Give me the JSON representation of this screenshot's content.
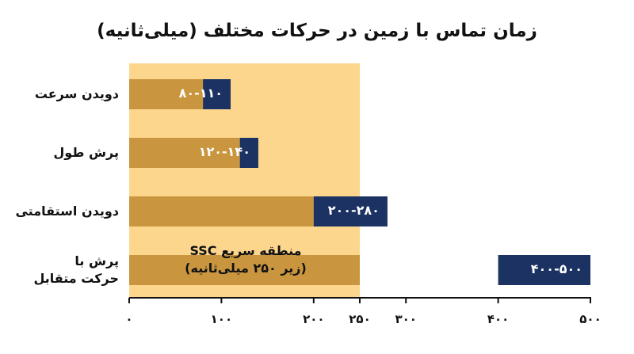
{
  "chart_data": {
    "type": "bar",
    "orientation": "horizontal",
    "title": "زمان تماس با زمین در حرکات مختلف (میلی‌ثانیه)",
    "xlabel": "",
    "ylabel": "",
    "xlim": [
      0,
      500
    ],
    "ticks": [
      {
        "value": 0,
        "label": "۰"
      },
      {
        "value": 100,
        "label": "۱۰۰"
      },
      {
        "value": 200,
        "label": "۲۰۰"
      },
      {
        "value": 250,
        "label": "۲۵۰"
      },
      {
        "value": 300,
        "label": "۳۰۰"
      },
      {
        "value": 400,
        "label": "۴۰۰"
      },
      {
        "value": 500,
        "label": "۵۰۰"
      }
    ],
    "categories": [
      {
        "name": "دویدن سرعت",
        "lines": [
          "دویدن سرعت"
        ],
        "range": [
          80,
          110
        ],
        "label": "۸۰-۱۱۰"
      },
      {
        "name": "پرش طول",
        "lines": [
          "پرش طول"
        ],
        "range": [
          120,
          140
        ],
        "label": "۱۲۰-۱۴۰"
      },
      {
        "name": "دویدن استقامتی",
        "lines": [
          "دویدن استقامتی"
        ],
        "range": [
          200,
          280
        ],
        "label": "۲۰۰-۲۸۰"
      },
      {
        "name": "پرش با حرکت متقابل",
        "lines": [
          "پرش با",
          "حرکت متقابل"
        ],
        "range": [
          400,
          500
        ],
        "label": "۴۰۰-۵۰۰"
      }
    ],
    "highlight_zone": {
      "range": [
        0,
        250
      ],
      "label_lines": [
        "منطقه سریع SSC",
        "(زیر ۲۵۰ میلی‌ثانیه)"
      ]
    },
    "colors": {
      "bar": "#1b3263",
      "stub": "#c9963f",
      "zone": "#fdd68e",
      "axis": "#111111"
    },
    "grid": false,
    "legend": "none"
  }
}
